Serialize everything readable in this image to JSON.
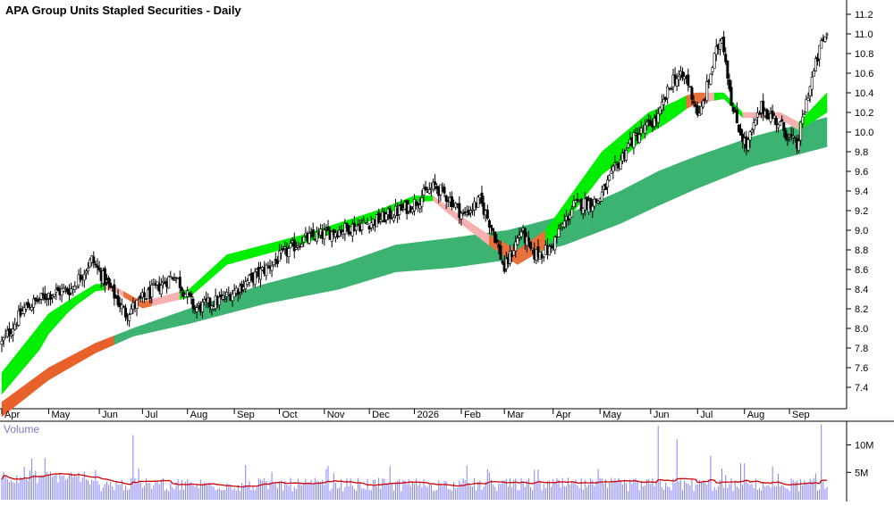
{
  "chart_data": [
    {
      "type": "candlestick",
      "title": "APA Group Units Stapled Securities - Daily",
      "y_ticks": [
        "7.4",
        "7.6",
        "7.8",
        "8.0",
        "8.2",
        "8.4",
        "8.6",
        "8.8",
        "9.0",
        "9.2",
        "9.4",
        "9.6",
        "9.8",
        "10.0",
        "10.2",
        "10.4",
        "10.6",
        "10.8",
        "11.0",
        "11.2"
      ],
      "ylim": [
        7.2,
        11.3
      ],
      "x_ticks": [
        "Apr",
        "May",
        "Jun",
        "Jul",
        "Aug",
        "Sep",
        "Oct",
        "Nov",
        "Dec",
        "2026",
        "Feb",
        "Mar",
        "Apr",
        "May",
        "Jun",
        "Jul",
        "Aug",
        "Sep"
      ],
      "price_path": [
        [
          0,
          7.85
        ],
        [
          12,
          8.2
        ],
        [
          25,
          8.35
        ],
        [
          37,
          8.4
        ],
        [
          48,
          8.7
        ],
        [
          58,
          8.4
        ],
        [
          66,
          8.15
        ],
        [
          75,
          8.3
        ],
        [
          92,
          8.55
        ],
        [
          103,
          8.2
        ],
        [
          118,
          8.3
        ],
        [
          140,
          8.6
        ],
        [
          160,
          8.9
        ],
        [
          180,
          9.0
        ],
        [
          200,
          9.1
        ],
        [
          218,
          9.25
        ],
        [
          231,
          9.45
        ],
        [
          240,
          9.3
        ],
        [
          246,
          9.15
        ],
        [
          255,
          9.3
        ],
        [
          262,
          9.0
        ],
        [
          268,
          8.6
        ],
        [
          277,
          9.0
        ],
        [
          283,
          8.75
        ],
        [
          292,
          8.8
        ],
        [
          305,
          9.25
        ],
        [
          318,
          9.3
        ],
        [
          335,
          9.9
        ],
        [
          350,
          10.15
        ],
        [
          358,
          10.55
        ],
        [
          365,
          10.55
        ],
        [
          372,
          10.15
        ],
        [
          380,
          10.75
        ],
        [
          384,
          11.0
        ],
        [
          390,
          10.2
        ],
        [
          397,
          9.85
        ],
        [
          405,
          10.25
        ],
        [
          414,
          10.1
        ],
        [
          424,
          9.85
        ],
        [
          430,
          10.4
        ],
        [
          437,
          10.9
        ],
        [
          440,
          11.0
        ]
      ],
      "ema_short": [
        [
          0,
          7.55
        ],
        [
          25,
          8.15
        ],
        [
          37,
          8.3
        ],
        [
          50,
          8.45
        ],
        [
          58,
          8.45
        ],
        [
          75,
          8.27
        ],
        [
          100,
          8.4
        ],
        [
          120,
          8.75
        ],
        [
          160,
          8.95
        ],
        [
          200,
          9.2
        ],
        [
          220,
          9.35
        ],
        [
          230,
          9.35
        ],
        [
          248,
          9.1
        ],
        [
          260,
          8.95
        ],
        [
          275,
          8.8
        ],
        [
          290,
          9.0
        ],
        [
          320,
          9.8
        ],
        [
          345,
          10.2
        ],
        [
          358,
          10.3
        ],
        [
          368,
          10.4
        ],
        [
          375,
          10.4
        ],
        [
          385,
          10.4
        ],
        [
          395,
          10.2
        ],
        [
          405,
          10.2
        ],
        [
          415,
          10.2
        ],
        [
          425,
          10.1
        ],
        [
          440,
          10.4
        ]
      ],
      "ema_long": [
        [
          0,
          7.25
        ],
        [
          25,
          7.6
        ],
        [
          50,
          7.85
        ],
        [
          70,
          8.0
        ],
        [
          100,
          8.2
        ],
        [
          140,
          8.45
        ],
        [
          180,
          8.65
        ],
        [
          210,
          8.85
        ],
        [
          240,
          8.92
        ],
        [
          270,
          9.0
        ],
        [
          300,
          9.15
        ],
        [
          330,
          9.4
        ],
        [
          350,
          9.6
        ],
        [
          370,
          9.75
        ],
        [
          385,
          9.85
        ],
        [
          400,
          9.95
        ],
        [
          420,
          10.05
        ],
        [
          440,
          10.15
        ]
      ],
      "ribbon_short_width": [
        [
          0,
          0.22
        ],
        [
          20,
          0.25
        ],
        [
          37,
          0.1
        ],
        [
          58,
          0.05
        ],
        [
          120,
          0.1
        ],
        [
          200,
          0.08
        ],
        [
          230,
          0.05
        ],
        [
          258,
          0.1
        ],
        [
          275,
          0.15
        ],
        [
          300,
          0.2
        ],
        [
          330,
          0.25
        ],
        [
          350,
          0.2
        ],
        [
          368,
          0.12
        ],
        [
          385,
          0.06
        ],
        [
          405,
          0.05
        ],
        [
          425,
          0.08
        ],
        [
          440,
          0.2
        ]
      ],
      "ribbon_long_width": [
        [
          0,
          0.15
        ],
        [
          50,
          0.1
        ],
        [
          70,
          0.08
        ],
        [
          100,
          0.15
        ],
        [
          180,
          0.25
        ],
        [
          240,
          0.3
        ],
        [
          300,
          0.3
        ],
        [
          350,
          0.35
        ],
        [
          400,
          0.3
        ],
        [
          440,
          0.3
        ]
      ],
      "ribbon_colors": {
        "short_up": "#00ee00",
        "short_down": "#f5b0b0",
        "short_cross": "#e8703a",
        "long_up": "#3cb371",
        "long_down": "#e8602a"
      },
      "grid": false
    },
    {
      "type": "bar",
      "title": "Volume",
      "y_ticks": [
        "5M",
        "10M"
      ],
      "ylim": [
        0,
        14000000
      ],
      "spikes": [
        [
          70,
          11800000
        ],
        [
          350,
          13500000
        ],
        [
          360,
          11000000
        ],
        [
          378,
          8000000
        ],
        [
          437,
          13800000
        ]
      ],
      "moving_average_color": "#d00000",
      "bar_color": "#8080ff"
    }
  ]
}
